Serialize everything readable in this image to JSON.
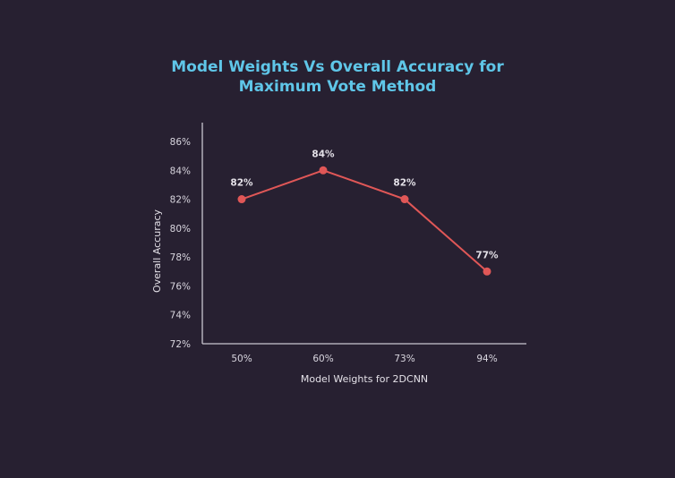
{
  "chart_data": {
    "type": "line",
    "title_lines": [
      "Model Weights Vs Overall Accuracy for",
      "Maximum Vote Method"
    ],
    "xlabel": "Model Weights for 2DCNN",
    "ylabel": "Overall Accuracy",
    "categories": [
      "50%",
      "60%",
      "73%",
      "94%"
    ],
    "values": [
      82,
      84,
      82,
      77
    ],
    "data_labels": [
      "82%",
      "84%",
      "82%",
      "77%"
    ],
    "y_ticks": [
      72,
      74,
      76,
      78,
      80,
      82,
      84,
      86
    ],
    "y_tick_labels": [
      "72%",
      "74%",
      "76%",
      "78%",
      "80%",
      "82%",
      "84%",
      "86%"
    ],
    "ylim": [
      72,
      87.3
    ],
    "grid": false,
    "colors": {
      "background": "#272031",
      "title": "#5fc6e8",
      "line": "#e05757",
      "axis": "#c9c5cf",
      "text": "#e4e1e8"
    }
  }
}
